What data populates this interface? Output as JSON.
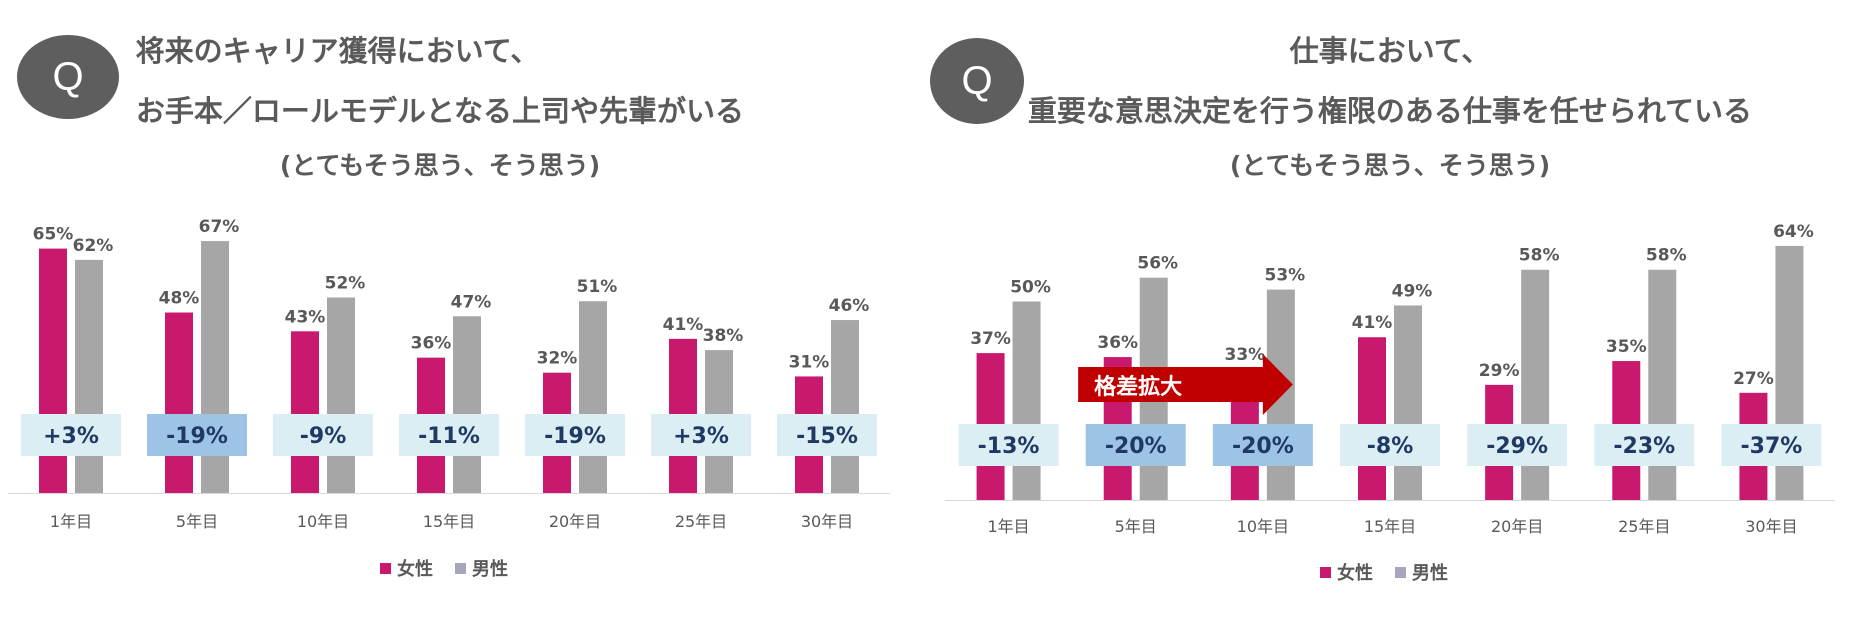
{
  "colors": {
    "female": "#c8196e",
    "male": "#a6a6a6",
    "diff_box": "#daeef3",
    "diff_box_highlight": "#9dc3e6",
    "diff_text": "#1f3864",
    "arrow": "#c00000",
    "label": "#595959"
  },
  "chart_data": [
    {
      "type": "bar",
      "q_badge": "Q",
      "title_lines": [
        "将来のキャリア獲得において、",
        "お手本／ロールモデルとなる上司や先輩がいる",
        "(とてもそう思う、そう思う)"
      ],
      "categories": [
        "1年目",
        "5年目",
        "10年目",
        "15年目",
        "20年目",
        "25年目",
        "30年目"
      ],
      "series": [
        {
          "name": "女性",
          "values": [
            65,
            48,
            43,
            36,
            32,
            41,
            31
          ],
          "labels": [
            "65%",
            "48%",
            "43%",
            "36%",
            "32%",
            "41%",
            "31%"
          ]
        },
        {
          "name": "男性",
          "values": [
            62,
            67,
            52,
            47,
            51,
            38,
            46
          ],
          "labels": [
            "62%",
            "67%",
            "52%",
            "47%",
            "51%",
            "38%",
            "46%"
          ]
        }
      ],
      "differences": [
        "+3%",
        "-19%",
        "-9%",
        "-11%",
        "-19%",
        "+3%",
        "-15%"
      ],
      "highlighted": [
        1
      ],
      "annotation": null,
      "ylim": [
        0,
        70
      ],
      "legend_position": "bottom-center"
    },
    {
      "type": "bar",
      "q_badge": "Q",
      "title_lines": [
        "仕事において、",
        "重要な意思決定を行う権限のある仕事を任せられている",
        "(とてもそう思う、そう思う)"
      ],
      "categories": [
        "1年目",
        "5年目",
        "10年目",
        "15年目",
        "20年目",
        "25年目",
        "30年目"
      ],
      "series": [
        {
          "name": "女性",
          "values": [
            37,
            36,
            33,
            41,
            29,
            35,
            27
          ],
          "labels": [
            "37%",
            "36%",
            "33%",
            "41%",
            "29%",
            "35%",
            "27%"
          ]
        },
        {
          "name": "男性",
          "values": [
            50,
            56,
            53,
            49,
            58,
            58,
            64
          ],
          "labels": [
            "50%",
            "56%",
            "53%",
            "49%",
            "58%",
            "58%",
            "64%"
          ]
        }
      ],
      "differences": [
        "-13%",
        "-20%",
        "-20%",
        "-8%",
        "-29%",
        "-23%",
        "-37%"
      ],
      "highlighted": [
        1,
        2
      ],
      "annotation": {
        "text": "格差拡大",
        "from_category": 1,
        "to_category": 2
      },
      "ylim": [
        0,
        70
      ],
      "legend_position": "bottom-center"
    }
  ]
}
